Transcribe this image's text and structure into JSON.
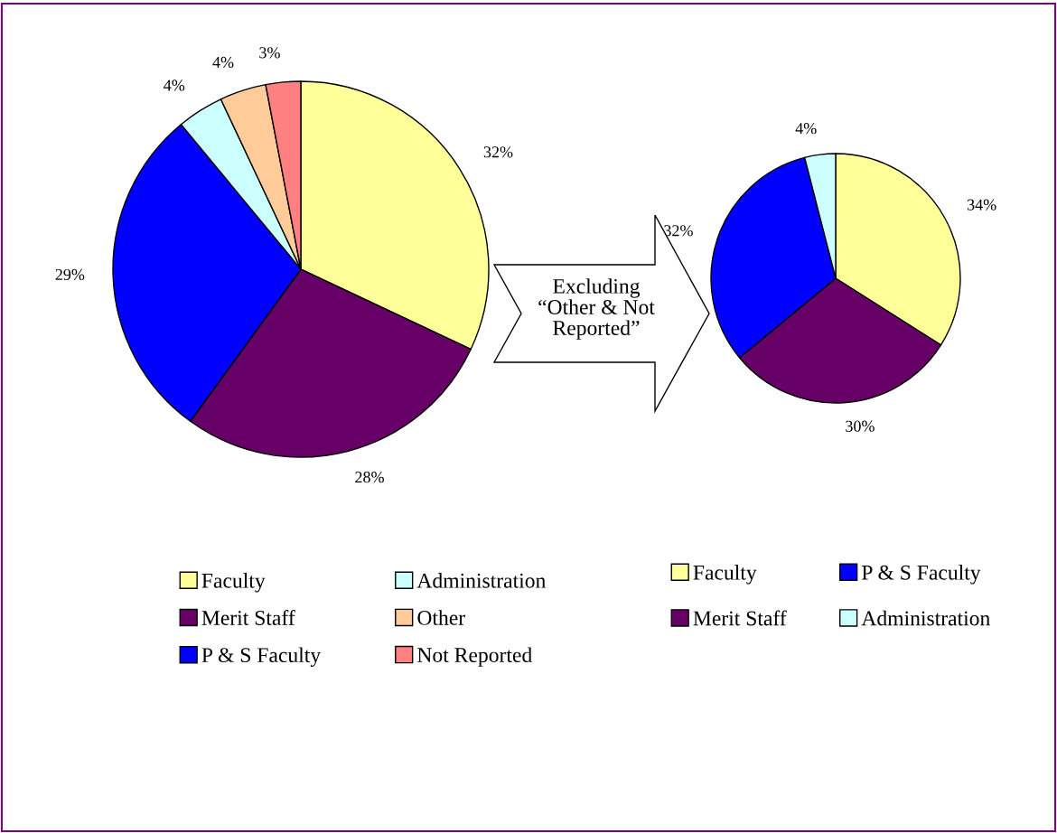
{
  "chart_data": [
    {
      "type": "pie",
      "categories": [
        "Faculty",
        "Merit Staff",
        "P & S Faculty",
        "Administration",
        "Other",
        "Not Reported"
      ],
      "values": [
        32,
        28,
        29,
        4,
        4,
        3
      ],
      "colors": [
        "#ffff99",
        "#660066",
        "#0000ff",
        "#ccffff",
        "#ffcc99",
        "#ff8080"
      ],
      "value_labels": [
        "32%",
        "28%",
        "29%",
        "4%",
        "4%",
        "3%"
      ],
      "legend": "bottom",
      "annotations": [
        "Excluding\n“Other & Not\nReported”"
      ]
    },
    {
      "type": "pie",
      "categories": [
        "Faculty",
        "Merit Staff",
        "P & S Faculty",
        "Administration"
      ],
      "values": [
        34,
        30,
        32,
        4
      ],
      "colors": [
        "#ffff99",
        "#660066",
        "#0000ff",
        "#ccffff"
      ],
      "value_labels": [
        "34%",
        "30%",
        "32%",
        "4%"
      ],
      "legend": "bottom"
    }
  ]
}
